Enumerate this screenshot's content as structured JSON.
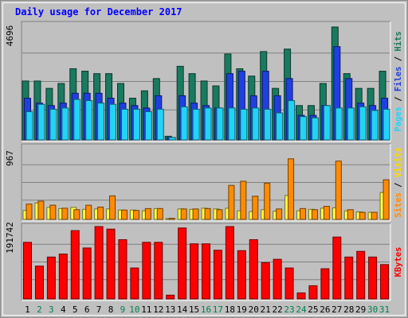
{
  "chart_data": [
    {
      "type": "bar",
      "title": "Daily usage for December 2017",
      "series": [
        {
          "name": "Hits",
          "color": "#197a5f",
          "values": [
            2400,
            2400,
            2100,
            2300,
            2900,
            2800,
            2700,
            2700,
            2300,
            1700,
            2000,
            2500,
            150,
            3000,
            2700,
            2400,
            2200,
            3500,
            2900,
            2600,
            3600,
            2100,
            3700,
            1400,
            1400,
            2300,
            4600,
            2700,
            2100,
            2100,
            2800
          ]
        },
        {
          "name": "Files",
          "color": "#1f3fe0",
          "values": [
            1700,
            1500,
            1400,
            1500,
            1900,
            1900,
            1900,
            1700,
            1500,
            1400,
            1300,
            1800,
            100,
            1800,
            1500,
            1400,
            1300,
            2700,
            2800,
            1800,
            2800,
            1800,
            2500,
            1000,
            1000,
            1400,
            3800,
            2500,
            1500,
            1400,
            1700
          ]
        },
        {
          "name": "Pages",
          "color": "#22d3f6",
          "values": [
            1150,
            1450,
            1250,
            1300,
            1650,
            1600,
            1500,
            1450,
            1250,
            1250,
            1150,
            1250,
            100,
            1350,
            1250,
            1300,
            1300,
            1300,
            1250,
            1300,
            1250,
            1100,
            1600,
            950,
            900,
            1400,
            1300,
            1300,
            1350,
            1200,
            1250
          ]
        }
      ],
      "categories": [
        "1",
        "2",
        "3",
        "4",
        "5",
        "6",
        "7",
        "8",
        "9",
        "10",
        "11",
        "12",
        "13",
        "14",
        "15",
        "16",
        "17",
        "18",
        "19",
        "20",
        "21",
        "22",
        "23",
        "24",
        "25",
        "26",
        "27",
        "28",
        "29",
        "30",
        "31"
      ],
      "ylim": [
        0,
        4696
      ],
      "tick_label": "4696",
      "legend": [
        {
          "text": "Pages",
          "color": "#22d3f6"
        },
        {
          "text": " / ",
          "color": "#000000"
        },
        {
          "text": "Files",
          "color": "#1f3fe0"
        },
        {
          "text": " / ",
          "color": "#000000"
        },
        {
          "text": "Hits",
          "color": "#197a5f"
        }
      ],
      "grid": true
    },
    {
      "type": "bar",
      "series": [
        {
          "name": "Visits",
          "color": "#ffff42",
          "values": [
            120,
            220,
            160,
            145,
            160,
            135,
            140,
            140,
            125,
            125,
            115,
            145,
            10,
            140,
            135,
            150,
            140,
            150,
            115,
            105,
            130,
            110,
            320,
            115,
            135,
            150,
            155,
            115,
            100,
            95,
            360
          ]
        },
        {
          "name": "Sites",
          "color": "#ff8c00",
          "values": [
            205,
            245,
            190,
            150,
            130,
            190,
            165,
            315,
            125,
            120,
            145,
            145,
            15,
            140,
            140,
            145,
            130,
            455,
            510,
            310,
            485,
            140,
            810,
            145,
            130,
            175,
            780,
            130,
            95,
            95,
            530
          ]
        }
      ],
      "ylim": [
        0,
        967
      ],
      "tick_label": "967",
      "legend": [
        {
          "text": "Sites",
          "color": "#ff8c00"
        },
        {
          "text": " / ",
          "color": "#000000"
        },
        {
          "text": "Visits",
          "color": "#ffd800"
        }
      ],
      "grid": true
    },
    {
      "type": "bar",
      "series": [
        {
          "name": "KBytes",
          "color": "#ff0000",
          "values": [
            150000,
            87000,
            111000,
            119000,
            181000,
            135000,
            191742,
            185000,
            157000,
            82000,
            150000,
            150000,
            10000,
            188000,
            146000,
            146000,
            129000,
            191742,
            128000,
            157000,
            96000,
            105000,
            82000,
            16000,
            35000,
            80000,
            164000,
            111000,
            126000,
            111000,
            91000
          ]
        }
      ],
      "ylim": [
        0,
        191742
      ],
      "tick_label": "191742",
      "legend": [
        {
          "text": "KBytes",
          "color": "#ff0000"
        }
      ],
      "grid": true
    }
  ]
}
